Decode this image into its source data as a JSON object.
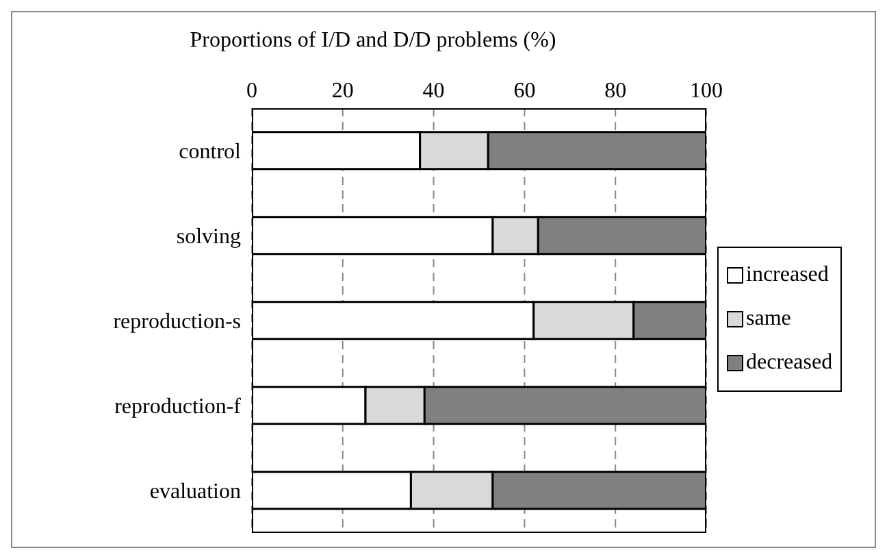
{
  "chart_data": {
    "type": "bar",
    "orientation": "horizontal",
    "stacked": true,
    "title": "Proportions of I/D and D/D problems (%)",
    "categories": [
      "control",
      "solving",
      "reproduction-s",
      "reproduction-f",
      "evaluation"
    ],
    "series": [
      {
        "name": "increased",
        "color": "#ffffff",
        "values": [
          37,
          53,
          62,
          25,
          35
        ]
      },
      {
        "name": "same",
        "color": "#d9d9d9",
        "values": [
          15,
          10,
          22,
          13,
          18
        ]
      },
      {
        "name": "decreased",
        "color": "#808080",
        "values": [
          48,
          37,
          16,
          62,
          47
        ]
      }
    ],
    "xlim": [
      0,
      100
    ],
    "xticks": [
      0,
      20,
      40,
      60,
      80,
      100
    ],
    "grid": "x",
    "legend": "right"
  }
}
